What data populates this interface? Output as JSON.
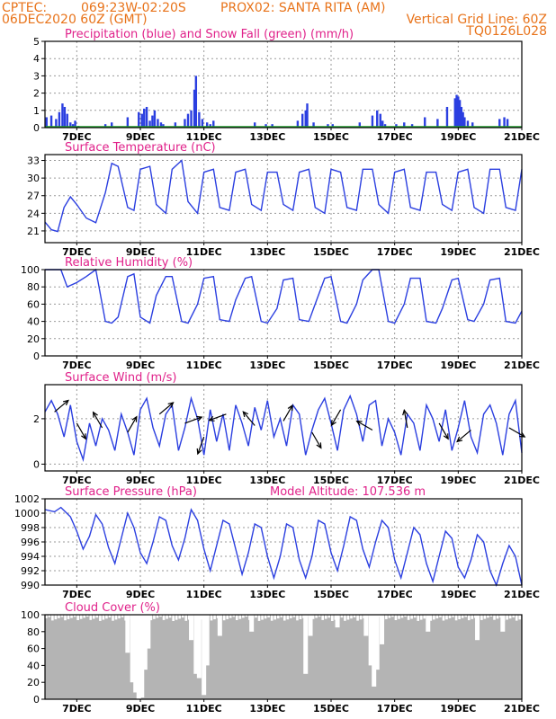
{
  "header": {
    "agency": "CPTEC:",
    "coords": "069:23W-02:20S",
    "location": "PROX02: SANTA RITA (AM)",
    "date": "06DEC2020 60Z (GMT)",
    "grid_note": "Vertical Grid Line: 60Z",
    "code": "TQ0126L028"
  },
  "x_ticks": [
    "7DEC",
    "9DEC",
    "11DEC",
    "13DEC",
    "15DEC",
    "17DEC",
    "19DEC",
    "21DEC"
  ],
  "colors": {
    "line": "#2b3fe0",
    "snow": "#1e9e2a",
    "cloud": "#b4b4b4",
    "title": "#e0218a",
    "header": "#e8731a"
  },
  "chart_data": [
    {
      "type": "bar",
      "title": "Precipitation (blue) and Snow Fall (green) (mm/h)",
      "ylim": [
        0,
        5
      ],
      "yticks": [
        "0",
        "1",
        "2",
        "3",
        "4",
        "5"
      ],
      "series": [
        {
          "name": "Precipitation",
          "x_day": [
            6.05,
            6.2,
            6.35,
            6.45,
            6.55,
            6.62,
            6.7,
            6.8,
            6.88,
            6.95,
            7.05,
            7.9,
            8.1,
            8.6,
            8.95,
            9.05,
            9.12,
            9.2,
            9.3,
            9.38,
            9.45,
            9.55,
            9.65,
            9.72,
            10.1,
            10.4,
            10.5,
            10.6,
            10.7,
            10.75,
            10.85,
            10.95,
            11.1,
            11.2,
            11.3,
            12.6,
            12.95,
            13.15,
            13.95,
            14.1,
            14.2,
            14.25,
            14.45,
            14.9,
            15.05,
            15.9,
            16.3,
            16.45,
            16.55,
            16.62,
            16.7,
            17.05,
            17.3,
            17.55,
            17.95,
            18.35,
            18.65,
            18.9,
            18.95,
            19.0,
            19.05,
            19.1,
            19.15,
            19.2,
            19.3,
            19.45,
            20.3,
            20.45,
            20.55
          ],
          "values": [
            0.6,
            0.7,
            0.5,
            0.9,
            1.4,
            1.2,
            0.8,
            0.3,
            0.2,
            0.4,
            0.1,
            0.2,
            0.3,
            0.6,
            0.9,
            0.8,
            1.1,
            1.2,
            0.4,
            0.7,
            1.0,
            0.5,
            0.3,
            0.2,
            0.3,
            0.5,
            0.8,
            1.0,
            2.2,
            3.0,
            0.9,
            0.5,
            0.3,
            0.2,
            0.4,
            0.3,
            0.2,
            0.2,
            0.4,
            0.8,
            1.0,
            1.4,
            0.3,
            0.2,
            0.2,
            0.3,
            0.7,
            1.0,
            0.8,
            0.4,
            0.2,
            0.2,
            0.3,
            0.2,
            0.6,
            0.5,
            1.2,
            1.7,
            1.9,
            1.8,
            1.6,
            1.2,
            0.9,
            0.6,
            0.4,
            0.3,
            0.5,
            0.6,
            0.5
          ]
        },
        {
          "name": "Snow Fall",
          "values": [
            0
          ]
        }
      ]
    },
    {
      "type": "line",
      "title": "Surface Temperature (nC)",
      "ylim": [
        19,
        34
      ],
      "yticks": [
        "21",
        "24",
        "27",
        "30",
        "33"
      ],
      "x_day": [
        6.0,
        6.2,
        6.4,
        6.6,
        6.8,
        7.0,
        7.3,
        7.6,
        7.9,
        8.1,
        8.3,
        8.6,
        8.8,
        9.0,
        9.3,
        9.5,
        9.8,
        10.0,
        10.3,
        10.5,
        10.8,
        11.0,
        11.3,
        11.5,
        11.8,
        12.0,
        12.3,
        12.5,
        12.8,
        13.0,
        13.3,
        13.5,
        13.8,
        14.0,
        14.3,
        14.5,
        14.8,
        15.0,
        15.3,
        15.5,
        15.8,
        16.0,
        16.3,
        16.5,
        16.8,
        17.0,
        17.3,
        17.5,
        17.8,
        18.0,
        18.3,
        18.5,
        18.8,
        19.0,
        19.3,
        19.5,
        19.8,
        20.0,
        20.3,
        20.5,
        20.8,
        21.0
      ],
      "values": [
        22.5,
        21.2,
        20.9,
        25.0,
        26.8,
        25.5,
        23.2,
        22.4,
        27.5,
        32.5,
        32.0,
        25.0,
        24.5,
        31.5,
        32.0,
        25.5,
        24.0,
        31.5,
        33.0,
        26.0,
        24.0,
        31.0,
        31.5,
        25.0,
        24.5,
        31.0,
        31.5,
        25.5,
        24.5,
        31.0,
        31.0,
        25.5,
        24.5,
        31.0,
        31.5,
        25.0,
        24.0,
        31.5,
        31.0,
        25.0,
        24.5,
        31.5,
        31.5,
        25.5,
        24.0,
        31.0,
        31.5,
        25.0,
        24.5,
        31.0,
        31.0,
        25.5,
        24.5,
        31.0,
        31.5,
        25.0,
        24.0,
        31.5,
        31.5,
        25.0,
        24.5,
        31.5
      ]
    },
    {
      "type": "line",
      "title": "Relative Humidity (%)",
      "ylim": [
        0,
        100
      ],
      "yticks": [
        "0",
        "20",
        "40",
        "60",
        "80",
        "100"
      ],
      "x_day": [
        6.0,
        6.3,
        6.5,
        6.7,
        7.0,
        7.3,
        7.6,
        7.9,
        8.1,
        8.3,
        8.6,
        8.8,
        9.0,
        9.3,
        9.5,
        9.8,
        10.0,
        10.3,
        10.5,
        10.8,
        11.0,
        11.3,
        11.5,
        11.8,
        12.0,
        12.3,
        12.5,
        12.8,
        13.0,
        13.3,
        13.5,
        13.8,
        14.0,
        14.3,
        14.5,
        14.8,
        15.0,
        15.3,
        15.5,
        15.8,
        16.0,
        16.3,
        16.5,
        16.8,
        17.0,
        17.3,
        17.5,
        17.8,
        18.0,
        18.3,
        18.5,
        18.8,
        19.0,
        19.3,
        19.5,
        19.8,
        20.0,
        20.3,
        20.5,
        20.8,
        21.0
      ],
      "values": [
        100,
        100,
        100,
        80,
        85,
        92,
        100,
        40,
        38,
        45,
        92,
        95,
        45,
        38,
        70,
        92,
        92,
        40,
        38,
        60,
        90,
        92,
        42,
        40,
        65,
        90,
        92,
        40,
        38,
        55,
        88,
        90,
        42,
        40,
        60,
        90,
        92,
        40,
        38,
        60,
        88,
        100,
        100,
        40,
        38,
        60,
        90,
        90,
        40,
        38,
        55,
        88,
        90,
        42,
        40,
        60,
        88,
        90,
        40,
        38,
        52
      ]
    },
    {
      "type": "line",
      "title": "Surface Wind (m/s)",
      "ylim": [
        -0.3,
        3.5
      ],
      "yticks": [
        "0",
        "2"
      ],
      "x_day": [
        6.0,
        6.2,
        6.4,
        6.6,
        6.8,
        7.0,
        7.2,
        7.4,
        7.6,
        7.8,
        8.0,
        8.2,
        8.4,
        8.6,
        8.8,
        9.0,
        9.2,
        9.4,
        9.6,
        9.8,
        10.0,
        10.2,
        10.4,
        10.6,
        10.8,
        11.0,
        11.2,
        11.4,
        11.6,
        11.8,
        12.0,
        12.2,
        12.4,
        12.6,
        12.8,
        13.0,
        13.2,
        13.4,
        13.6,
        13.8,
        14.0,
        14.2,
        14.4,
        14.6,
        14.8,
        15.0,
        15.2,
        15.4,
        15.6,
        15.8,
        16.0,
        16.2,
        16.4,
        16.6,
        16.8,
        17.0,
        17.2,
        17.4,
        17.6,
        17.8,
        18.0,
        18.2,
        18.4,
        18.6,
        18.8,
        19.0,
        19.2,
        19.4,
        19.6,
        19.8,
        20.0,
        20.2,
        20.4,
        20.6,
        20.8,
        21.0
      ],
      "values": [
        2.3,
        2.8,
        2.2,
        1.2,
        2.6,
        1.0,
        0.2,
        1.8,
        0.8,
        2.0,
        1.5,
        0.6,
        2.2,
        1.4,
        0.4,
        2.4,
        2.9,
        1.6,
        0.8,
        2.2,
        2.6,
        0.6,
        1.6,
        2.9,
        2.0,
        0.4,
        2.4,
        1.0,
        2.2,
        0.6,
        2.6,
        1.8,
        0.8,
        2.5,
        1.5,
        2.8,
        1.2,
        2.0,
        0.8,
        2.6,
        2.2,
        0.4,
        1.5,
        2.4,
        2.9,
        1.8,
        0.6,
        2.4,
        3.0,
        2.2,
        1.0,
        2.6,
        2.8,
        0.8,
        2.0,
        1.4,
        0.4,
        2.2,
        1.8,
        0.6,
        2.6,
        2.0,
        1.0,
        2.4,
        0.6,
        1.6,
        2.8,
        1.2,
        0.5,
        2.2,
        2.6,
        1.8,
        0.4,
        2.2,
        2.8,
        0.5
      ],
      "arrows": [
        {
          "day": 6.3,
          "dir_deg": 40,
          "speed": 2.3
        },
        {
          "day": 7.0,
          "dir_deg": 300,
          "speed": 1.8
        },
        {
          "day": 7.8,
          "dir_deg": 120,
          "speed": 1.6
        },
        {
          "day": 8.6,
          "dir_deg": 60,
          "speed": 1.4
        },
        {
          "day": 9.6,
          "dir_deg": 40,
          "speed": 2.2
        },
        {
          "day": 10.4,
          "dir_deg": 20,
          "speed": 1.8
        },
        {
          "day": 11.0,
          "dir_deg": 250,
          "speed": 1.2
        },
        {
          "day": 11.7,
          "dir_deg": 200,
          "speed": 2.2
        },
        {
          "day": 12.6,
          "dir_deg": 130,
          "speed": 1.7
        },
        {
          "day": 13.5,
          "dir_deg": 60,
          "speed": 1.9
        },
        {
          "day": 14.4,
          "dir_deg": 300,
          "speed": 1.4
        },
        {
          "day": 15.3,
          "dir_deg": 240,
          "speed": 2.4
        },
        {
          "day": 16.3,
          "dir_deg": 150,
          "speed": 1.5
        },
        {
          "day": 17.4,
          "dir_deg": 100,
          "speed": 1.6
        },
        {
          "day": 18.4,
          "dir_deg": 300,
          "speed": 1.8
        },
        {
          "day": 19.4,
          "dir_deg": 220,
          "speed": 1.5
        },
        {
          "day": 20.6,
          "dir_deg": 330,
          "speed": 1.6
        }
      ]
    },
    {
      "type": "line",
      "title": "Surface Pressure (hPa)",
      "annotation": "Model Altitude: 107.536  m",
      "ylim": [
        990,
        1002
      ],
      "yticks": [
        "990",
        "992",
        "994",
        "996",
        "998",
        "1000",
        "1002"
      ],
      "x_day": [
        6.0,
        6.3,
        6.5,
        6.8,
        7.0,
        7.2,
        7.4,
        7.6,
        7.8,
        8.0,
        8.2,
        8.4,
        8.6,
        8.8,
        9.0,
        9.2,
        9.4,
        9.6,
        9.8,
        10.0,
        10.2,
        10.4,
        10.6,
        10.8,
        11.0,
        11.2,
        11.4,
        11.6,
        11.8,
        12.0,
        12.2,
        12.4,
        12.6,
        12.8,
        13.0,
        13.2,
        13.4,
        13.6,
        13.8,
        14.0,
        14.2,
        14.4,
        14.6,
        14.8,
        15.0,
        15.2,
        15.4,
        15.6,
        15.8,
        16.0,
        16.2,
        16.4,
        16.6,
        16.8,
        17.0,
        17.2,
        17.4,
        17.6,
        17.8,
        18.0,
        18.2,
        18.4,
        18.6,
        18.8,
        19.0,
        19.2,
        19.4,
        19.6,
        19.8,
        20.0,
        20.2,
        20.4,
        20.6,
        20.8,
        21.0
      ],
      "values": [
        1000.5,
        1000.2,
        1000.8,
        999.5,
        997.5,
        995.0,
        996.8,
        999.8,
        998.5,
        995.2,
        993.0,
        996.5,
        1000.0,
        998.0,
        994.5,
        993.0,
        996.0,
        999.5,
        999.0,
        995.5,
        993.5,
        996.5,
        1000.5,
        999.0,
        995.0,
        992.0,
        995.5,
        999.0,
        998.5,
        995.0,
        991.5,
        994.5,
        998.5,
        998.0,
        994.0,
        991.0,
        994.0,
        998.5,
        998.0,
        993.5,
        991.0,
        994.0,
        999.0,
        998.5,
        994.5,
        992.0,
        995.5,
        999.5,
        999.0,
        995.0,
        992.5,
        996.0,
        999.0,
        998.0,
        993.5,
        991.0,
        994.5,
        998.0,
        997.0,
        993.0,
        990.5,
        994.0,
        997.5,
        996.5,
        992.5,
        991.0,
        993.5,
        997.0,
        996.0,
        992.0,
        990.0,
        993.0,
        995.5,
        994.0,
        990.0
      ]
    },
    {
      "type": "bar",
      "title": "Cloud Cover (%)",
      "ylim": [
        0,
        100
      ],
      "yticks": [
        "0",
        "20",
        "40",
        "60",
        "80",
        "100"
      ],
      "drops": [
        {
          "day": 8.6,
          "low": 55
        },
        {
          "day": 8.75,
          "low": 20
        },
        {
          "day": 8.85,
          "low": 8
        },
        {
          "day": 8.95,
          "low": 0
        },
        {
          "day": 9.05,
          "low": 2
        },
        {
          "day": 9.15,
          "low": 35
        },
        {
          "day": 9.25,
          "low": 60
        },
        {
          "day": 10.6,
          "low": 70
        },
        {
          "day": 10.75,
          "low": 30
        },
        {
          "day": 10.85,
          "low": 25
        },
        {
          "day": 11.0,
          "low": 5
        },
        {
          "day": 11.1,
          "low": 40
        },
        {
          "day": 11.5,
          "low": 75
        },
        {
          "day": 12.5,
          "low": 80
        },
        {
          "day": 14.2,
          "low": 30
        },
        {
          "day": 14.35,
          "low": 75
        },
        {
          "day": 15.2,
          "low": 85
        },
        {
          "day": 16.1,
          "low": 75
        },
        {
          "day": 16.25,
          "low": 40
        },
        {
          "day": 16.35,
          "low": 15
        },
        {
          "day": 16.45,
          "low": 35
        },
        {
          "day": 16.6,
          "low": 65
        },
        {
          "day": 18.05,
          "low": 80
        },
        {
          "day": 19.6,
          "low": 70
        },
        {
          "day": 20.4,
          "low": 80
        }
      ]
    }
  ]
}
